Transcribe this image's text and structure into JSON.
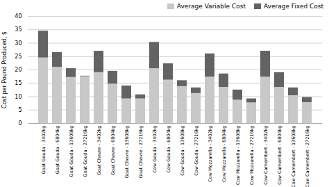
{
  "chart_data": {
    "type": "bar",
    "stacked": true,
    "categories": [
      "Goat Gouda - 3402kg",
      "Goat Gouda - 6804kg",
      "Goat Gouda - 13608kg",
      "Goat Gouda - 27216kg",
      "Goat Chevre - 3402kg",
      "Goat Chevre - 6804kg",
      "Goat Chevre - 13608kg",
      "Goat Chevre - 27216kg",
      "Cow Gouda - 3402kg",
      "Cow Gouda - 6804kg",
      "Cow Gouda - 13608kg",
      "Cow Gouda - 27216kg",
      "Cow Mozzarella - 3402kg",
      "Cow Mozzarella - 6804kg",
      "Cow Mozzarella - 13608kg",
      "Cow Mozzarella - 27216kg",
      "Cow Camembert - 3402kg",
      "Cow Camembert - 6804kg",
      "Cow Camembert - 13608kg",
      "Cow Camembert - 27216kg"
    ],
    "series": [
      {
        "name": "Average Variable Cost",
        "color": "#c8c8c8",
        "values": [
          24.5,
          21.0,
          17.2,
          17.5,
          19.0,
          14.7,
          9.2,
          9.2,
          20.5,
          16.2,
          13.8,
          11.2,
          17.3,
          13.5,
          8.7,
          7.7,
          17.3,
          13.5,
          10.4,
          7.8
        ]
      },
      {
        "name": "Average Fixed Cost",
        "color": "#636363",
        "values": [
          10.0,
          5.5,
          3.3,
          0.2,
          8.0,
          4.8,
          4.8,
          1.5,
          9.8,
          6.1,
          2.2,
          2.1,
          8.7,
          5.0,
          3.8,
          1.5,
          9.7,
          5.5,
          2.9,
          1.9
        ]
      }
    ],
    "ylabel": "Cost per Pound Produced, $",
    "ylim": [
      0,
      40
    ],
    "yticks": [
      0,
      5,
      10,
      15,
      20,
      25,
      30,
      35,
      40
    ],
    "grid": true,
    "legend": "upper right"
  }
}
